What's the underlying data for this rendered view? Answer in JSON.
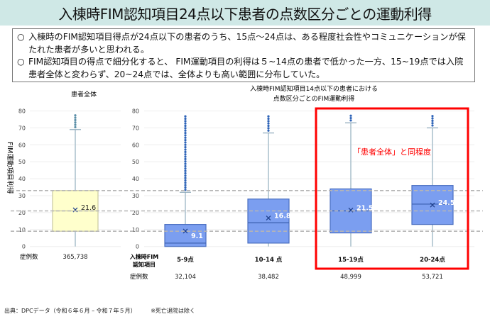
{
  "title": "入棟時FIM認知項目24点以下患者の点数区分ごとの運動利得",
  "summary": [
    {
      "bullet": "○",
      "text": "入棟時のFIM認知項目得点が24点以下の患者のうち、15点～24点は、ある程度社会性やコミュニケーションが保たれた患者が多いと思われる。"
    },
    {
      "bullet": "○",
      "text": "FIM認知項目の得点で細分化すると、 FIM運動項目の利得は５~14点の患者で低かった一方、15~19点では入院患者全体と変わらず、20~24点では、全体よりも高い範囲に分布していた。"
    }
  ],
  "chart_data": [
    {
      "type": "box",
      "title": "患者全体",
      "ylabel": "FIM運動項目利得",
      "ylim": [
        0,
        80
      ],
      "yticks": [
        "0",
        "10",
        "20",
        "30",
        "40",
        "50",
        "60",
        "70",
        "80"
      ],
      "count_label": "症例数",
      "box_color": "#ffffcc",
      "boxes": [
        {
          "category": "",
          "count": "365,738",
          "q1": 9,
          "median": 21,
          "q3": 33,
          "mean": 21.6,
          "mean_label": "21.6",
          "whisker_low": 0,
          "whisker_high": 69,
          "outlier_max": 78
        }
      ]
    },
    {
      "type": "box",
      "title": "入棟時FIM認知項目14点以下の患者における\n点数区分ごとのFIM運動利得",
      "title_lines": [
        "入棟時FIM認知項目14点以下の患者における",
        "点数区分ごとのFIM運動利得"
      ],
      "ylim": [
        0,
        80
      ],
      "yticks": [
        "0",
        "10",
        "20",
        "30",
        "40",
        "50",
        "60",
        "70",
        "80"
      ],
      "xaxis_label_lines": [
        "入棟時FIM",
        "認知項目"
      ],
      "count_label": "症例数",
      "box_color": "#7b9ef0",
      "boxes": [
        {
          "category": "5-9点",
          "count": "32,104",
          "q1": 0,
          "median": 2,
          "q3": 13,
          "mean": 9.1,
          "mean_label": "9.1",
          "whisker_low": 0,
          "whisker_high": 32,
          "outlier_max": 77
        },
        {
          "category": "10-14 点",
          "count": "38,482",
          "q1": 2,
          "median": 14,
          "q3": 28,
          "mean": 16.8,
          "mean_label": "16.8",
          "whisker_low": 0,
          "whisker_high": 67,
          "outlier_max": 78
        },
        {
          "category": "15-19点",
          "count": "48,999",
          "q1": 8,
          "median": 21,
          "q3": 34,
          "mean": 21.5,
          "mean_label": "21.5",
          "whisker_low": 0,
          "whisker_high": 73,
          "outlier_max": 78
        },
        {
          "category": "20-24点",
          "count": "53,721",
          "q1": 13,
          "median": 25,
          "q3": 36,
          "mean": 24.5,
          "mean_label": "24.5",
          "whisker_low": 0,
          "whisker_high": 70,
          "outlier_max": 77
        }
      ]
    }
  ],
  "reference_lines": [
    9,
    21,
    33
  ],
  "highlight": {
    "label": "「患者全体」と同程度",
    "color": "#ff0000"
  },
  "footer": {
    "source": "出典：DPCデータ（令和６年６月 – 令和７年５月）",
    "note": "※死亡退院は除く"
  }
}
